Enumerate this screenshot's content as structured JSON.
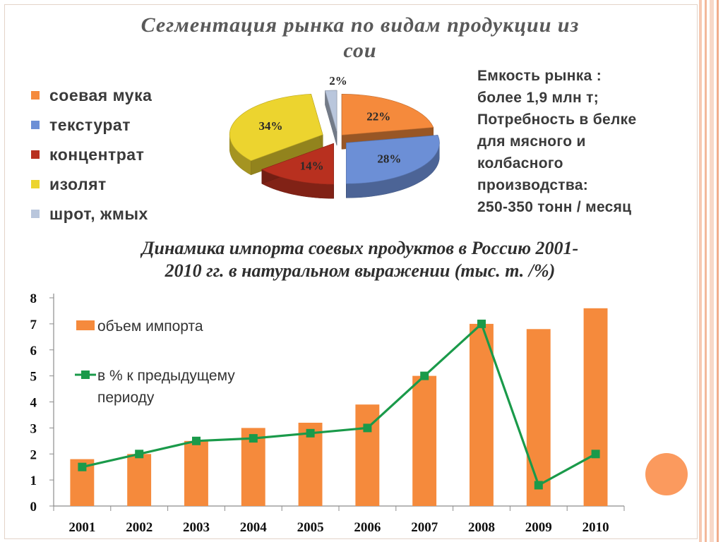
{
  "slide": {
    "title_line1": "Сегментация рынка по видам продукции из",
    "title_line2": "сои"
  },
  "pie_legend": [
    {
      "label": "соевая мука",
      "color": "#f58a3c"
    },
    {
      "label": "текстурат",
      "color": "#6c8fd6"
    },
    {
      "label": "концентрат",
      "color": "#b8301f"
    },
    {
      "label": "изолят",
      "color": "#ecd42f"
    },
    {
      "label": "шрот, жмых",
      "color": "#b9c6dc"
    }
  ],
  "info": {
    "line1": "Емкость рынка :",
    "line2": " более 1,9 млн т;",
    "line3": "Потребность в белке",
    "line4": "для мясного и",
    "line5": "колбасного",
    "line6": "производства:",
    "line7": "250-350 тонн / месяц"
  },
  "chart2": {
    "title_line1": "Динамика импорта соевых продуктов в Россию 2001-",
    "title_line2": "2010 гг. в натуральном выражении (тыс. т. /%)"
  },
  "chart_data": [
    {
      "type": "pie",
      "categories": [
        "соевая мука",
        "текстурат",
        "концентрат",
        "изолят",
        "шрот, жмых"
      ],
      "values": [
        22,
        28,
        14,
        34,
        2
      ],
      "labels": [
        "22%",
        "28%",
        "14%",
        "34%",
        "2%"
      ],
      "colors": [
        "#f58a3c",
        "#6c8fd6",
        "#b8301f",
        "#ecd42f",
        "#b9c6dc"
      ],
      "title": "Сегментация рынка по видам продукции из сои",
      "legend": "left"
    },
    {
      "type": "bar",
      "categories": [
        "2001",
        "2002",
        "2003",
        "2004",
        "2005",
        "2006",
        "2007",
        "2008",
        "2009",
        "2010"
      ],
      "series": [
        {
          "name": "объем импорта",
          "type": "bar",
          "color": "#f58a3c",
          "values": [
            1.8,
            2.0,
            2.5,
            3.0,
            3.2,
            3.9,
            5.0,
            7.0,
            6.8,
            7.6
          ]
        },
        {
          "name": "в % к предыдущему периоду",
          "type": "line",
          "color": "#1a9a4a",
          "values": [
            1.5,
            2.0,
            2.5,
            2.6,
            2.8,
            3.0,
            5.0,
            7.0,
            0.8,
            2.0
          ]
        }
      ],
      "title": "Динамика импорта соевых продуктов в Россию 2001-2010 гг. в натуральном выражении (тыс. т. /%)",
      "ylim": [
        0,
        8
      ],
      "yticks": [
        "0",
        "1",
        "2",
        "3",
        "4",
        "5",
        "6",
        "7",
        "8"
      ],
      "legend": "top-left",
      "grid": false
    }
  ]
}
